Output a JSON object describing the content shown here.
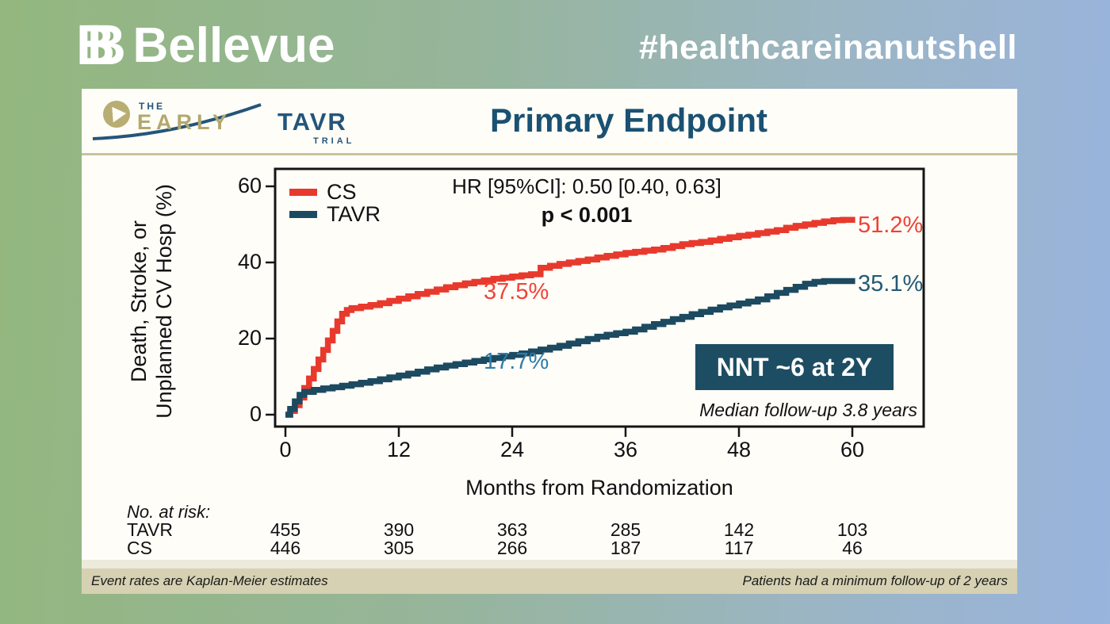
{
  "banner": {
    "brand_mark": "BB",
    "brand": "Bellevue",
    "hashtag": "#healthcareinanutshell"
  },
  "slide": {
    "trial_logo": {
      "the": "THE",
      "early": "EARLY",
      "tavr": "TAVR",
      "trial": "TRIAL"
    },
    "title": "Primary Endpoint",
    "footer_left": "Event rates are Kaplan-Meier estimates",
    "footer_right": "Patients had a minimum follow-up of 2 years"
  },
  "chart_data": {
    "type": "line",
    "subtype": "kaplan-meier-step",
    "title": "Primary Endpoint",
    "xlabel": "Months from Randomization",
    "ylabel": "Death, Stroke, or Unplanned CV Hosp (%)",
    "ylabel_lines": [
      "Death, Stroke, or",
      "Unplanned CV Hosp (%)"
    ],
    "xlim": [
      0,
      67
    ],
    "ylim": [
      0,
      62
    ],
    "xticks": [
      0,
      12,
      24,
      36,
      48,
      60
    ],
    "yticks": [
      0,
      20,
      40,
      60
    ],
    "grid": false,
    "legend_position": "top-left",
    "legend": [
      {
        "name": "CS",
        "color": "#e8392d"
      },
      {
        "name": "TAVR",
        "color": "#1c4a61"
      }
    ],
    "annotations": {
      "hr": "HR [95%CI]: 0.50 [0.40, 0.63]",
      "p": "p < 0.001",
      "cs_mid": {
        "text": "37.5%",
        "color": "#f04338"
      },
      "tavr_mid": {
        "text": "17.7%",
        "color": "#2e7eab"
      },
      "cs_end": {
        "text": "51.2%",
        "color": "#ef4136"
      },
      "tavr_end": {
        "text": "35.1%",
        "color": "#235a77"
      },
      "nnt_box": {
        "text": "NNT ~6 at 2Y",
        "bg": "#1d4d63",
        "fg": "#ffffff"
      },
      "median_note": "Median follow-up 3.8 years"
    },
    "series": [
      {
        "name": "CS",
        "color": "#e8392d",
        "points": [
          [
            0,
            0
          ],
          [
            0.5,
            1
          ],
          [
            1,
            2.5
          ],
          [
            1.5,
            4.5
          ],
          [
            2,
            7
          ],
          [
            2.5,
            9.5
          ],
          [
            3,
            12
          ],
          [
            3.5,
            14.5
          ],
          [
            4,
            17
          ],
          [
            4.5,
            19.5
          ],
          [
            5,
            22
          ],
          [
            5.5,
            24.5
          ],
          [
            6,
            26.5
          ],
          [
            6.5,
            27.5
          ],
          [
            7,
            28
          ],
          [
            8,
            28.4
          ],
          [
            9,
            28.8
          ],
          [
            10,
            29.3
          ],
          [
            11,
            29.9
          ],
          [
            12,
            30.5
          ],
          [
            13,
            31.1
          ],
          [
            14,
            31.7
          ],
          [
            15,
            32.3
          ],
          [
            16,
            32.9
          ],
          [
            17,
            33.5
          ],
          [
            18,
            34
          ],
          [
            19,
            34.5
          ],
          [
            20,
            34.9
          ],
          [
            21,
            35.3
          ],
          [
            22,
            35.7
          ],
          [
            23,
            36
          ],
          [
            24,
            36.3
          ],
          [
            25,
            36.6
          ],
          [
            26,
            36.9
          ],
          [
            27,
            38.6
          ],
          [
            28,
            39.1
          ],
          [
            29,
            39.6
          ],
          [
            30,
            40
          ],
          [
            31,
            40.4
          ],
          [
            32,
            40.8
          ],
          [
            33,
            41.3
          ],
          [
            34,
            41.7
          ],
          [
            35,
            42.1
          ],
          [
            36,
            42.5
          ],
          [
            37,
            42.8
          ],
          [
            38,
            43.1
          ],
          [
            39,
            43.4
          ],
          [
            40,
            43.8
          ],
          [
            41,
            44.3
          ],
          [
            42,
            44.8
          ],
          [
            43,
            45.1
          ],
          [
            44,
            45.4
          ],
          [
            45,
            45.8
          ],
          [
            46,
            46.2
          ],
          [
            47,
            46.6
          ],
          [
            48,
            47
          ],
          [
            49,
            47.3
          ],
          [
            50,
            47.7
          ],
          [
            51,
            48.1
          ],
          [
            52,
            48.5
          ],
          [
            53,
            49.1
          ],
          [
            54,
            49.6
          ],
          [
            55,
            50
          ],
          [
            56,
            50.4
          ],
          [
            57,
            50.8
          ],
          [
            58,
            51.1
          ],
          [
            59,
            51.2
          ],
          [
            60.3,
            51.2
          ]
        ]
      },
      {
        "name": "TAVR",
        "color": "#1c4a61",
        "points": [
          [
            0,
            0
          ],
          [
            0.5,
            1.5
          ],
          [
            1,
            3.5
          ],
          [
            1.5,
            5.2
          ],
          [
            2,
            6
          ],
          [
            3,
            6.5
          ],
          [
            4,
            6.9
          ],
          [
            5,
            7.2
          ],
          [
            6,
            7.6
          ],
          [
            7,
            8
          ],
          [
            8,
            8.4
          ],
          [
            9,
            8.8
          ],
          [
            10,
            9.3
          ],
          [
            11,
            9.8
          ],
          [
            12,
            10.3
          ],
          [
            13,
            10.8
          ],
          [
            14,
            11.3
          ],
          [
            15,
            11.9
          ],
          [
            16,
            12.4
          ],
          [
            17,
            12.9
          ],
          [
            18,
            13.3
          ],
          [
            19,
            13.7
          ],
          [
            20,
            14.1
          ],
          [
            21,
            14.5
          ],
          [
            22,
            14.9
          ],
          [
            23,
            15.3
          ],
          [
            24,
            15.7
          ],
          [
            25,
            16.1
          ],
          [
            26,
            16.6
          ],
          [
            27,
            17.1
          ],
          [
            28,
            17.6
          ],
          [
            29,
            18.1
          ],
          [
            30,
            18.7
          ],
          [
            31,
            19.3
          ],
          [
            32,
            19.9
          ],
          [
            33,
            20.5
          ],
          [
            34,
            21
          ],
          [
            35,
            21.4
          ],
          [
            36,
            21.8
          ],
          [
            37,
            22.4
          ],
          [
            38,
            23.1
          ],
          [
            39,
            23.8
          ],
          [
            40,
            24.4
          ],
          [
            41,
            25.1
          ],
          [
            42,
            25.7
          ],
          [
            43,
            26.4
          ],
          [
            44,
            27
          ],
          [
            45,
            27.6
          ],
          [
            46,
            28.2
          ],
          [
            47,
            28.7
          ],
          [
            48,
            29.2
          ],
          [
            49,
            29.7
          ],
          [
            50,
            30.3
          ],
          [
            51,
            31.1
          ],
          [
            52,
            32
          ],
          [
            53,
            32.8
          ],
          [
            54,
            33.6
          ],
          [
            55,
            34.4
          ],
          [
            56,
            34.9
          ],
          [
            57,
            35.1
          ],
          [
            60.3,
            35.1
          ]
        ]
      }
    ],
    "at_risk": {
      "label": "No. at risk:",
      "months": [
        0,
        12,
        24,
        36,
        48,
        60
      ],
      "rows": [
        {
          "name": "TAVR",
          "values": [
            455,
            390,
            363,
            285,
            142,
            103
          ]
        },
        {
          "name": "CS",
          "values": [
            446,
            305,
            266,
            187,
            117,
            46
          ]
        }
      ]
    }
  }
}
